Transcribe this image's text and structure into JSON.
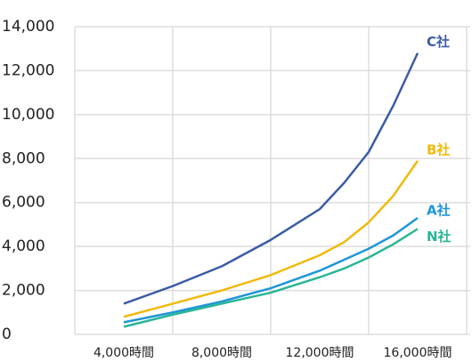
{
  "chart_data": {
    "type": "line",
    "x": [
      4000,
      6000,
      8000,
      10000,
      12000,
      13000,
      14000,
      15000,
      16000
    ],
    "series": [
      {
        "name": "C社",
        "color": "#3b5ba5",
        "values": [
          1400,
          2200,
          3100,
          4300,
          5700,
          6900,
          8300,
          10400,
          12800
        ]
      },
      {
        "name": "B社",
        "color": "#f0b90b",
        "values": [
          800,
          1400,
          2000,
          2700,
          3600,
          4200,
          5100,
          6300,
          7900
        ]
      },
      {
        "name": "A社",
        "color": "#1e96d8",
        "values": [
          550,
          1000,
          1500,
          2100,
          2900,
          3400,
          3900,
          4500,
          5300
        ]
      },
      {
        "name": "N社",
        "color": "#2ab596",
        "values": [
          350,
          900,
          1400,
          1900,
          2600,
          3000,
          3500,
          4100,
          4800
        ]
      }
    ],
    "xlim": [
      2000,
      18000
    ],
    "xticks": [
      {
        "value": 4000,
        "label": "4,000時間"
      },
      {
        "value": 8000,
        "label": "8,000時間"
      },
      {
        "value": 12000,
        "label": "12,000時間"
      },
      {
        "value": 16000,
        "label": "16,000時間"
      }
    ],
    "ylim": [
      0,
      14000
    ],
    "yticks": [
      0,
      {
        "value": 2000,
        "label": "2,000"
      },
      {
        "value": 4000,
        "label": "4,000"
      },
      {
        "value": 6000,
        "label": "6,000"
      },
      {
        "value": 8000,
        "label": "8,000"
      },
      {
        "value": 10000,
        "label": "10,000"
      },
      {
        "value": 12000,
        "label": "12,000"
      },
      {
        "value": 14000,
        "label": "14,000"
      }
    ],
    "grid": true
  }
}
